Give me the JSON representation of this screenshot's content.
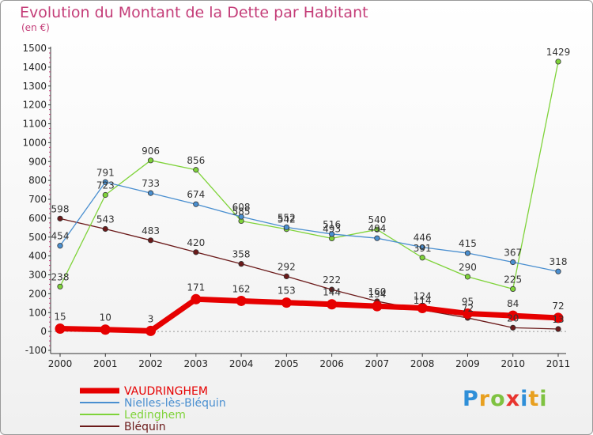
{
  "header": {
    "title": "Evolution du Montant de la Dette par Habitant",
    "unit": "(en €)"
  },
  "logo": {
    "text": "Proxiti"
  },
  "chart_data": {
    "type": "line",
    "title": "Evolution du Montant de la Dette par Habitant",
    "subtitle": "(en €)",
    "x": [
      "2000",
      "2001",
      "2002",
      "2003",
      "2004",
      "2005",
      "2006",
      "2007",
      "2008",
      "2009",
      "2010",
      "2011"
    ],
    "yticks": [
      -100,
      0,
      100,
      200,
      300,
      400,
      500,
      600,
      700,
      800,
      900,
      1000,
      1100,
      1200,
      1300,
      1400,
      1500
    ],
    "ylim": [
      -100,
      1500
    ],
    "grid": false,
    "legend_position": "bottom-left",
    "series": [
      {
        "name": "VAUDRINGHEM",
        "color": "#e60000",
        "values": [
          15,
          10,
          3,
          171,
          162,
          153,
          144,
          134,
          124,
          95,
          84,
          72
        ]
      },
      {
        "name": "Nielles-lès-Bléquin",
        "color": "#4a8fd0",
        "values": [
          454,
          791,
          733,
          674,
          608,
          552,
          516,
          494,
          446,
          415,
          367,
          318
        ]
      },
      {
        "name": "Ledinghem",
        "color": "#7fd33a",
        "values": [
          238,
          723,
          906,
          856,
          585,
          542,
          493,
          540,
          391,
          290,
          225,
          1429
        ]
      },
      {
        "name": "Bléquin",
        "color": "#6b1a1a",
        "values": [
          598,
          543,
          483,
          420,
          358,
          292,
          222,
          160,
          114,
          72,
          20,
          13
        ]
      }
    ]
  }
}
